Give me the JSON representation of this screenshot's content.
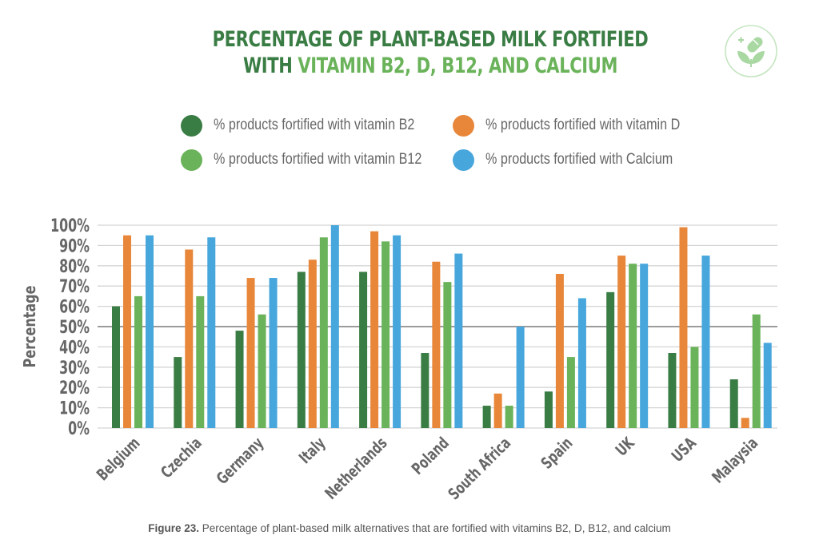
{
  "header": {
    "title_line1": "PERCENTAGE OF PLANT-BASED MILK FORTIFIED",
    "title_line2_prefix": "WITH ",
    "title_line2_highlight": "VITAMIN B2, D, B12, AND CALCIUM",
    "logo_icon": "plant-pill-icon"
  },
  "colors": {
    "b2": "#3a7d44",
    "d": "#e8873a",
    "b12": "#6ab35a",
    "calcium": "#47a6dc",
    "title_dark": "#3a7d44",
    "title_light": "#6ab35a",
    "axis_text": "#666666",
    "logo": "#b9dfb5"
  },
  "caption": {
    "label": "Figure 23.",
    "text": " Percentage of plant-based milk alternatives that are fortified with vitamins B2, D, B12, and calcium"
  },
  "chart_data": {
    "type": "bar",
    "title": "PERCENTAGE OF PLANT-BASED MILK FORTIFIED WITH VITAMIN B2, D, B12, AND CALCIUM",
    "xlabel": "",
    "ylabel": "Percentage",
    "ylim": [
      0,
      100
    ],
    "yticks": [
      "0%",
      "10%",
      "20%",
      "30%",
      "40%",
      "50%",
      "60%",
      "70%",
      "80%",
      "90%",
      "100%"
    ],
    "grid": true,
    "highlight_gridline": "50%",
    "legend_position": "top-center",
    "categories": [
      "Belgium",
      "Czechia",
      "Germany",
      "Italy",
      "Netherlands",
      "Poland",
      "South Africa",
      "Spain",
      "UK",
      "USA",
      "Malaysia"
    ],
    "series": [
      {
        "key": "b2",
        "name": "% products fortified with vitamin B2",
        "values": [
          60,
          35,
          48,
          77,
          77,
          37,
          11,
          18,
          67,
          37,
          24
        ]
      },
      {
        "key": "d",
        "name": "% products fortified with vitamin D",
        "values": [
          95,
          88,
          74,
          83,
          97,
          82,
          17,
          76,
          85,
          99,
          5
        ]
      },
      {
        "key": "b12",
        "name": "% products fortified with vitamin B12",
        "values": [
          65,
          65,
          56,
          94,
          92,
          72,
          11,
          35,
          81,
          40,
          56
        ]
      },
      {
        "key": "calcium",
        "name": "% products fortified with Calcium",
        "values": [
          95,
          94,
          74,
          100,
          95,
          86,
          50,
          64,
          81,
          85,
          42
        ]
      }
    ]
  }
}
